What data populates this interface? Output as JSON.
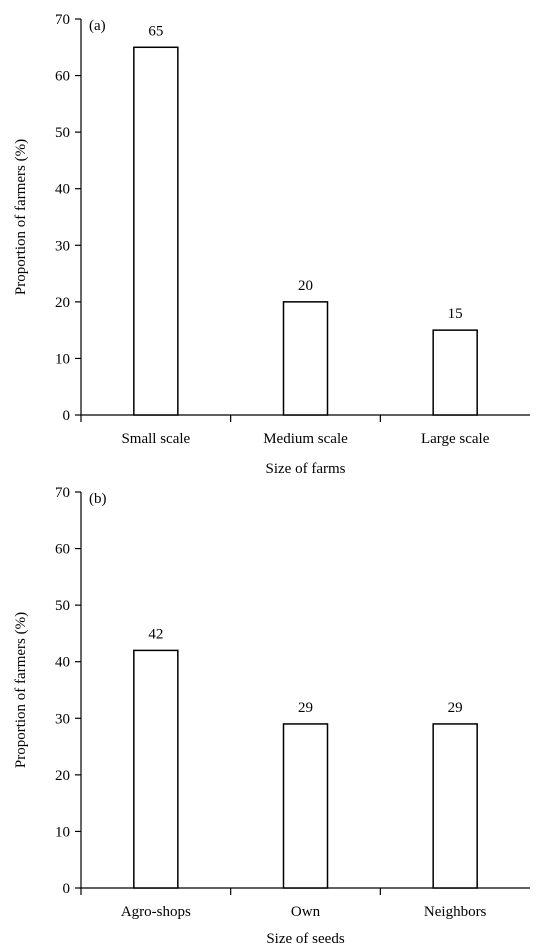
{
  "chart_data": [
    {
      "type": "bar",
      "panel_label": "(a)",
      "categories": [
        "Small scale",
        "Medium scale",
        "Large scale"
      ],
      "values": [
        65,
        20,
        15
      ],
      "data_labels": [
        "65",
        "20",
        "15"
      ],
      "xlabel": "Size of farms",
      "ylabel": "Proportion of farmers (%)",
      "ylim": [
        0,
        70
      ],
      "yticks": [
        "0",
        "10",
        "20",
        "30",
        "40",
        "50",
        "60",
        "70"
      ],
      "grid": false,
      "legend": "none"
    },
    {
      "type": "bar",
      "panel_label": "(b)",
      "categories": [
        "Agro-shops",
        "Own",
        "Neighbors"
      ],
      "values": [
        42,
        29,
        29
      ],
      "data_labels": [
        "42",
        "29",
        "29"
      ],
      "xlabel": "Size of seeds",
      "ylabel": "Proportion of farmers (%)",
      "ylim": [
        0,
        70
      ],
      "yticks": [
        "0",
        "10",
        "20",
        "30",
        "40",
        "50",
        "60",
        "70"
      ],
      "grid": false,
      "legend": "none"
    }
  ]
}
